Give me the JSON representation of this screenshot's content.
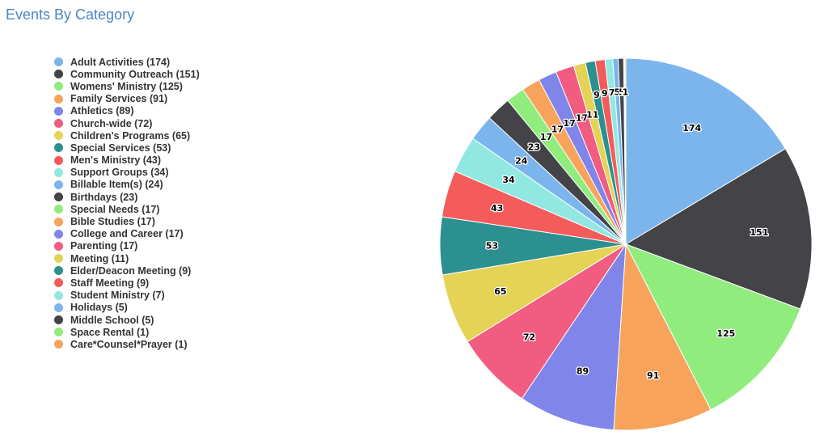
{
  "page": {
    "title": "Events By Category"
  },
  "chart_data": {
    "type": "pie",
    "title": "Events By Category",
    "legend": "left",
    "categories": [
      "Adult Activities",
      "Community Outreach",
      "Womens' Ministry",
      "Family Services",
      "Athletics",
      "Church-wide",
      "Children's Programs",
      "Special Services",
      "Men's Ministry",
      "Support Groups",
      "Billable Item(s)",
      "Birthdays",
      "Special Needs",
      "Bible Studies",
      "College and Career",
      "Parenting",
      "Meeting",
      "Elder/Deacon Meeting",
      "Staff Meeting",
      "Student Ministry",
      "Holidays",
      "Middle School",
      "Space Rental",
      "Care*Counsel*Prayer"
    ],
    "values": [
      174,
      151,
      125,
      91,
      89,
      72,
      65,
      53,
      43,
      34,
      24,
      23,
      17,
      17,
      17,
      17,
      11,
      9,
      9,
      7,
      5,
      5,
      1,
      1
    ],
    "legend_labels": [
      "Adult Activities (174)",
      "Community Outreach (151)",
      "Womens' Ministry (125)",
      "Family Services (91)",
      "Athletics (89)",
      "Church-wide (72)",
      "Children's Programs (65)",
      "Special Services (53)",
      "Men's Ministry (43)",
      "Support Groups (34)",
      "Billable Item(s) (24)",
      "Birthdays (23)",
      "Special Needs (17)",
      "Bible Studies (17)",
      "College and Career (17)",
      "Parenting (17)",
      "Meeting (11)",
      "Elder/Deacon Meeting (9)",
      "Staff Meeting (9)",
      "Student Ministry (7)",
      "Holidays (5)",
      "Middle School (5)",
      "Space Rental (1)",
      "Care*Counsel*Prayer (1)"
    ],
    "data_labels": [
      "174",
      "151",
      "125",
      "91",
      "89",
      "72",
      "65",
      "53",
      "43",
      "34",
      "24",
      "23",
      "17",
      "17",
      "17",
      "17",
      "11",
      "9",
      "9",
      "7",
      "5",
      "5",
      "1",
      "1"
    ],
    "colors": [
      "#7cb5ec",
      "#434348",
      "#90ed7d",
      "#f7a35c",
      "#8085e9",
      "#f15c80",
      "#e4d354",
      "#2b908f",
      "#f45b5b",
      "#91e8e1",
      "#7cb5ec",
      "#434348",
      "#90ed7d",
      "#f7a35c",
      "#8085e9",
      "#f15c80",
      "#e4d354",
      "#2b908f",
      "#f45b5b",
      "#91e8e1",
      "#7cb5ec",
      "#434348",
      "#90ed7d",
      "#f7a35c"
    ]
  }
}
